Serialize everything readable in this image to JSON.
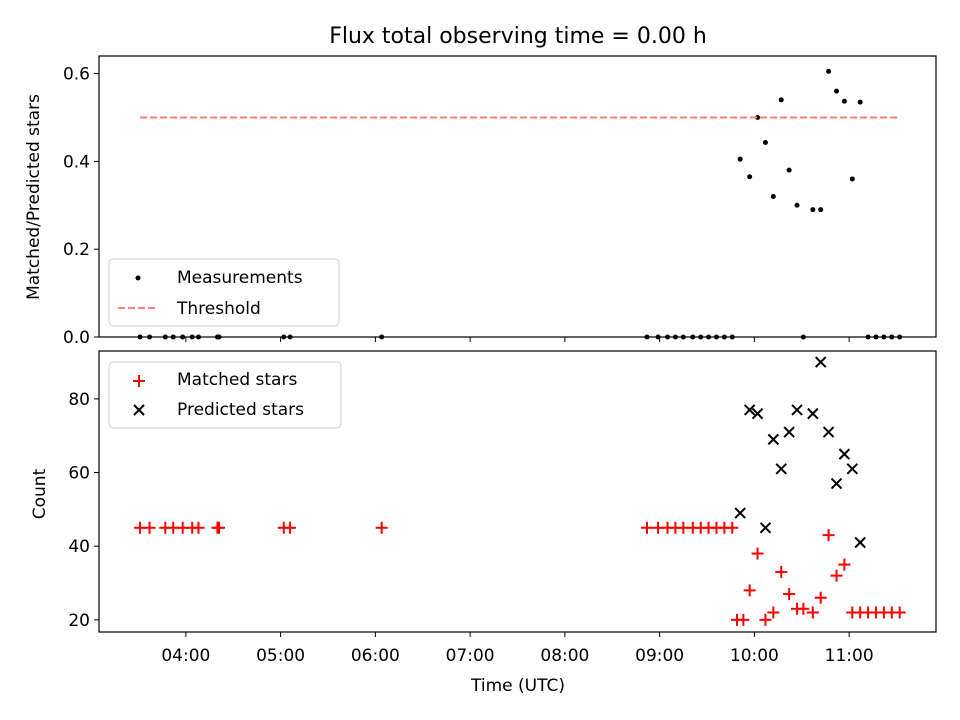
{
  "chart_data": [
    {
      "type": "scatter",
      "title": "Flux total observing time = 0.00 h",
      "xlabel": "",
      "ylabel": "Matched/Predicted stars",
      "xlim": [
        "03:05",
        "11:55"
      ],
      "ylim": [
        0,
        0.64
      ],
      "yticks": [
        "0.0",
        "0.2",
        "0.4",
        "0.6"
      ],
      "grid": false,
      "legend_position": "lower-left",
      "series": [
        {
          "name": "Measurements",
          "color": "#000000",
          "marker": "dot",
          "points": [
            [
              "03:31",
              0
            ],
            [
              "03:37",
              0
            ],
            [
              "03:47",
              0
            ],
            [
              "03:52",
              0
            ],
            [
              "03:58",
              0
            ],
            [
              "04:04",
              0
            ],
            [
              "04:08",
              0
            ],
            [
              "04:20",
              0
            ],
            [
              "04:21",
              0
            ],
            [
              "05:02",
              0
            ],
            [
              "05:06",
              0
            ],
            [
              "06:04",
              0
            ],
            [
              "08:52",
              0
            ],
            [
              "08:59",
              0
            ],
            [
              "09:05",
              0
            ],
            [
              "09:10",
              0
            ],
            [
              "09:15",
              0
            ],
            [
              "09:21",
              0
            ],
            [
              "09:26",
              0
            ],
            [
              "09:31",
              0
            ],
            [
              "09:36",
              0
            ],
            [
              "09:41",
              0
            ],
            [
              "09:46",
              0
            ],
            [
              "09:51",
              0.405
            ],
            [
              "09:57",
              0.365
            ],
            [
              "10:02",
              0.5
            ],
            [
              "10:07",
              0.443
            ],
            [
              "10:12",
              0.32
            ],
            [
              "10:17",
              0.54
            ],
            [
              "10:22",
              0.38
            ],
            [
              "10:27",
              0.3
            ],
            [
              "10:31",
              0
            ],
            [
              "10:37",
              0.29
            ],
            [
              "10:42",
              0.29
            ],
            [
              "10:47",
              0.605
            ],
            [
              "10:52",
              0.56
            ],
            [
              "10:57",
              0.537
            ],
            [
              "11:02",
              0.36
            ],
            [
              "11:07",
              0.535
            ],
            [
              "11:12",
              0
            ],
            [
              "11:17",
              0
            ],
            [
              "11:22",
              0
            ],
            [
              "11:27",
              0
            ],
            [
              "11:32",
              0
            ]
          ]
        },
        {
          "name": "Threshold",
          "color": "#ff7f7f",
          "style": "dashed",
          "points": [
            [
              "03:31",
              0.5
            ],
            [
              "11:32",
              0.5
            ]
          ]
        }
      ]
    },
    {
      "type": "scatter",
      "title": "",
      "xlabel": "Time (UTC)",
      "ylabel": "Count",
      "xlim": [
        "03:05",
        "11:55"
      ],
      "ylim": [
        16.7,
        93
      ],
      "yticks": [
        "20",
        "40",
        "60",
        "80"
      ],
      "xticks": [
        "04:00",
        "05:00",
        "06:00",
        "07:00",
        "08:00",
        "09:00",
        "10:00",
        "11:00"
      ],
      "grid": false,
      "legend_position": "top-left",
      "series": [
        {
          "name": "Matched stars",
          "color": "#ff0000",
          "marker": "plus",
          "points": [
            [
              "03:31",
              45
            ],
            [
              "03:37",
              45
            ],
            [
              "03:47",
              45
            ],
            [
              "03:52",
              45
            ],
            [
              "03:58",
              45
            ],
            [
              "04:04",
              45
            ],
            [
              "04:08",
              45
            ],
            [
              "04:20",
              45
            ],
            [
              "04:21",
              45
            ],
            [
              "05:02",
              45
            ],
            [
              "05:06",
              45
            ],
            [
              "06:04",
              45
            ],
            [
              "08:52",
              45
            ],
            [
              "08:59",
              45
            ],
            [
              "09:05",
              45
            ],
            [
              "09:10",
              45
            ],
            [
              "09:15",
              45
            ],
            [
              "09:21",
              45
            ],
            [
              "09:26",
              45
            ],
            [
              "09:31",
              45
            ],
            [
              "09:36",
              45
            ],
            [
              "09:41",
              45
            ],
            [
              "09:46",
              45
            ],
            [
              "09:49",
              20
            ],
            [
              "09:53",
              20
            ],
            [
              "09:57",
              28
            ],
            [
              "10:02",
              38
            ],
            [
              "10:07",
              20
            ],
            [
              "10:12",
              22
            ],
            [
              "10:17",
              33
            ],
            [
              "10:22",
              27
            ],
            [
              "10:27",
              23
            ],
            [
              "10:31",
              23
            ],
            [
              "10:37",
              22
            ],
            [
              "10:42",
              26
            ],
            [
              "10:47",
              43
            ],
            [
              "10:52",
              32
            ],
            [
              "10:57",
              35
            ],
            [
              "11:02",
              22
            ],
            [
              "11:07",
              22
            ],
            [
              "11:12",
              22
            ],
            [
              "11:17",
              22
            ],
            [
              "11:22",
              22
            ],
            [
              "11:27",
              22
            ],
            [
              "11:32",
              22
            ]
          ]
        },
        {
          "name": "Predicted stars",
          "color": "#000000",
          "marker": "x",
          "points": [
            [
              "09:51",
              49
            ],
            [
              "09:57",
              77
            ],
            [
              "10:02",
              76
            ],
            [
              "10:07",
              45
            ],
            [
              "10:12",
              69
            ],
            [
              "10:17",
              61
            ],
            [
              "10:22",
              71
            ],
            [
              "10:27",
              77
            ],
            [
              "10:37",
              76
            ],
            [
              "10:42",
              90
            ],
            [
              "10:47",
              71
            ],
            [
              "10:52",
              57
            ],
            [
              "10:57",
              65
            ],
            [
              "11:02",
              61
            ],
            [
              "11:07",
              41
            ]
          ]
        }
      ]
    }
  ]
}
